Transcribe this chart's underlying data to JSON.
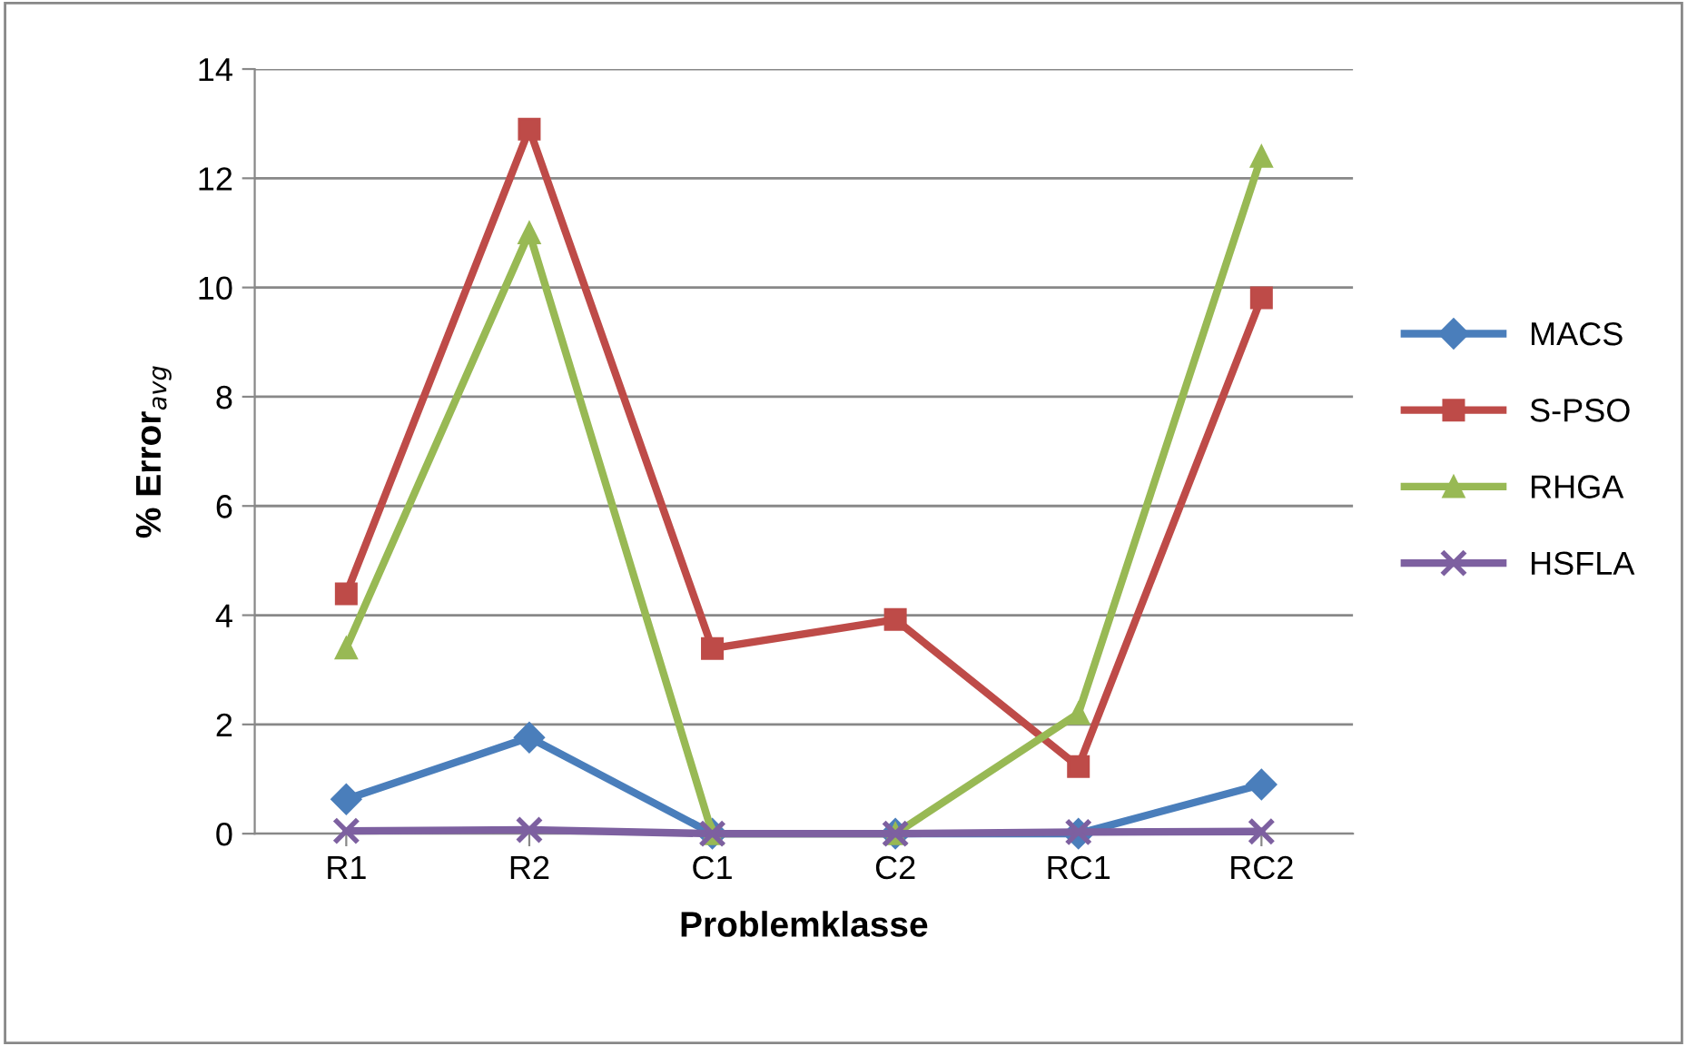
{
  "chart_data": {
    "type": "line",
    "xlabel": "Problemklasse",
    "ylabel": "% Error$_{avg}$",
    "categories": [
      "R1",
      "R2",
      "C1",
      "C2",
      "RC1",
      "RC2"
    ],
    "series": [
      {
        "name": "MACS",
        "color": "#4a7ebb",
        "marker": "diamond",
        "values": [
          0.63,
          1.76,
          0,
          0,
          0,
          0.9
        ]
      },
      {
        "name": "S-PSO",
        "color": "#be4b48",
        "marker": "square",
        "values": [
          4.39,
          12.9,
          3.39,
          3.92,
          1.23,
          9.81
        ]
      },
      {
        "name": "RHGA",
        "color": "#98b954",
        "marker": "triangle",
        "values": [
          3.4,
          11.0,
          0,
          0,
          2.2,
          12.4
        ]
      },
      {
        "name": "HSFLA",
        "color": "#7d60a0",
        "marker": "cross",
        "values": [
          0.05,
          0.07,
          0,
          0,
          0.03,
          0.04
        ]
      }
    ],
    "ylim": [
      0,
      14
    ],
    "yticks": [
      0,
      2,
      4,
      6,
      8,
      10,
      12,
      14
    ],
    "grid": "y",
    "legend": "right",
    "line_style": "solid"
  }
}
